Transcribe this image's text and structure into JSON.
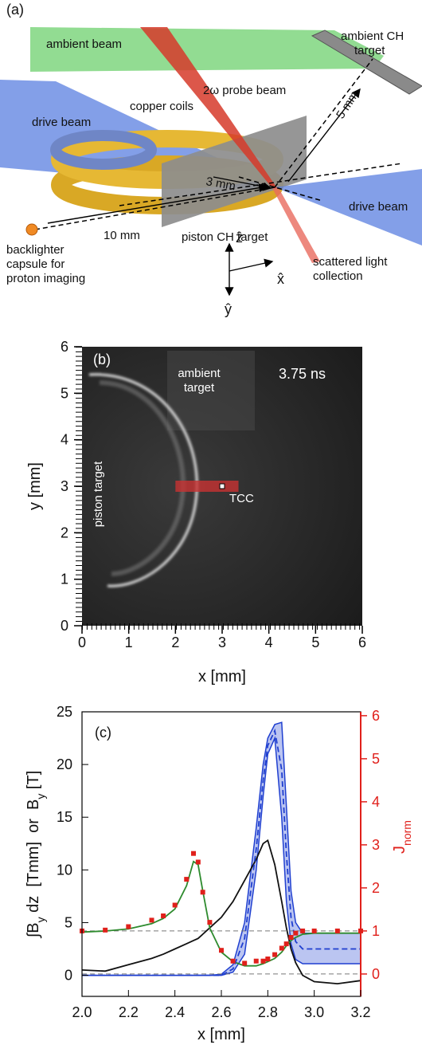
{
  "diagram": {
    "panel_label": "(a)",
    "ambient_beam": "ambient beam",
    "ambient_target": [
      "ambient CH",
      "target"
    ],
    "probe_beam": "2ω probe beam",
    "copper_coils": "copper coils",
    "dist_5": "5 mm",
    "drive_beam_left": "drive beam",
    "dist_3": "3 mm",
    "drive_beam_right": "drive beam",
    "dist_10": "10 mm",
    "piston_target": "piston CH target",
    "backlighter": [
      "backlighter",
      "capsule for",
      "proton imaging"
    ],
    "scattered": [
      "scattered light",
      "collection"
    ],
    "axis_z": "ẑ",
    "axis_x": "x̂",
    "axis_y": "ŷ"
  },
  "chart_data": [
    {
      "type": "image",
      "panel_label": "(b)",
      "xlabel": "x [mm]",
      "ylabel": "y [mm]",
      "xlim": [
        0,
        6
      ],
      "ylim": [
        0,
        6
      ],
      "xticks": [
        0,
        1,
        2,
        3,
        4,
        5,
        6
      ],
      "yticks": [
        0,
        1,
        2,
        3,
        4,
        5,
        6
      ],
      "annotations": {
        "time": "3.75 ns",
        "ambient": [
          "ambient",
          "target"
        ],
        "piston": "piston target",
        "tcc": "TCC"
      },
      "region": {
        "x": [
          2.0,
          3.35
        ],
        "y": [
          2.88,
          3.12
        ],
        "color": "#c83232"
      },
      "tcc_point": [
        3.0,
        3.0
      ]
    },
    {
      "type": "line",
      "panel_label": "(c)",
      "xlabel": "x [mm]",
      "ylabel": [
        "∫B",
        "y",
        " dz  [Tmm]  or  B",
        "y",
        " [T]"
      ],
      "y2label": [
        "J",
        "norm"
      ],
      "y2color": "#e0201b",
      "x": [
        2.0,
        2.1,
        2.2,
        2.3,
        2.35,
        2.4,
        2.45,
        2.48,
        2.5,
        2.52,
        2.55,
        2.6,
        2.65,
        2.7,
        2.75,
        2.78,
        2.8,
        2.83,
        2.86,
        2.88,
        2.9,
        2.92,
        2.95,
        3.0,
        3.1,
        3.2
      ],
      "xlim": [
        2.0,
        3.2
      ],
      "xticks": [
        {
          "value": 2,
          "label": "2.0"
        },
        2.2,
        2.4,
        2.6,
        2.8,
        {
          "value": 3,
          "label": "3.0"
        },
        3.2
      ],
      "ylim": [
        -2,
        25
      ],
      "yticks": [
        0,
        5,
        10,
        15,
        20,
        25
      ],
      "y2lim": [
        -0.52,
        6.09
      ],
      "y2ticks": [
        0,
        1,
        2,
        3,
        4,
        5,
        6
      ],
      "ref_lines_y2": [
        0,
        1
      ],
      "band": {
        "color": "#1f3fd0",
        "fill_opacity": 0.3,
        "upper": [
          0,
          0,
          0,
          0,
          0,
          0,
          0,
          0,
          0,
          0,
          0,
          0.1,
          1.0,
          5.0,
          14.0,
          20.0,
          22.5,
          23.8,
          24.0,
          16.0,
          8.0,
          5.0,
          4.0,
          4.0,
          4.0,
          4.0
        ],
        "lower": [
          0,
          0,
          0,
          0,
          0,
          0,
          0,
          0,
          0,
          0,
          0,
          0,
          0.3,
          2.0,
          10.0,
          17.0,
          21.0,
          22.5,
          15.0,
          7.0,
          3.0,
          1.5,
          1.1,
          1.1,
          1.1,
          1.1
        ]
      },
      "series": [
        {
          "color": "#111111",
          "style": "solid",
          "values": [
            0.5,
            0.4,
            1.0,
            1.6,
            2.0,
            2.5,
            3.0,
            3.3,
            3.5,
            3.9,
            4.5,
            5.5,
            7.0,
            9.0,
            11.0,
            12.5,
            12.8,
            10.5,
            7.0,
            4.5,
            2.5,
            1.2,
            0.0,
            -0.6,
            -0.8,
            -0.5
          ]
        },
        {
          "color": "#2e8b2e",
          "style": "solid",
          "values": [
            4.1,
            4.2,
            4.4,
            4.9,
            5.4,
            6.3,
            8.5,
            10.8,
            10.5,
            8.0,
            4.5,
            2.2,
            1.3,
            0.9,
            0.9,
            1.1,
            1.3,
            1.6,
            2.2,
            2.8,
            3.3,
            3.6,
            3.9,
            4.0,
            4.0,
            4.0
          ]
        },
        {
          "color": "#1f3fd0",
          "style": "dashed",
          "values": [
            0,
            0,
            0,
            0,
            0,
            0,
            0,
            0,
            0,
            0,
            0,
            0,
            0.6,
            3.5,
            12.0,
            18.5,
            21.8,
            23.2,
            19.5,
            11.5,
            5.5,
            3.2,
            2.5,
            2.5,
            2.5,
            2.5
          ]
        },
        {
          "color": "#e0201b",
          "marker": "square",
          "axis": "y2",
          "values": [
            1.0,
            1.02,
            1.1,
            1.25,
            1.35,
            1.6,
            2.2,
            2.8,
            2.6,
            1.9,
            1.2,
            0.55,
            0.3,
            0.25,
            0.3,
            0.3,
            0.35,
            0.45,
            0.6,
            0.7,
            0.85,
            0.95,
            1.0,
            1.0,
            1.0,
            1.0
          ]
        }
      ]
    }
  ]
}
